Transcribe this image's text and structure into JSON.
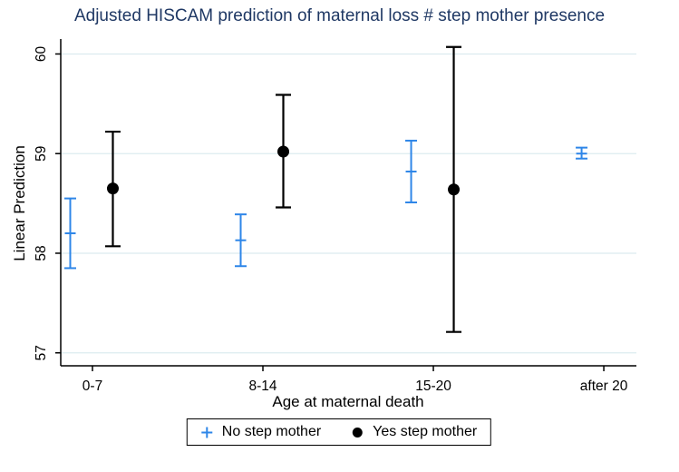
{
  "chart_data": {
    "type": "scatter",
    "title": "Adjusted HISCAM prediction of maternal loss # step mother presence",
    "xlabel": "Age at maternal death",
    "ylabel": "Linear Prediction",
    "categories": [
      "0-7",
      "8-14",
      "15-20",
      "after 20"
    ],
    "yticks": [
      57,
      58,
      59,
      60
    ],
    "ylim": [
      56.87,
      60.15
    ],
    "grid": true,
    "legend_position": "bottom-outside",
    "series": [
      {
        "name": "No step mother",
        "marker": "plus",
        "color": "#2e86e8",
        "values": [
          58.2,
          58.13,
          58.82,
          59.0
        ],
        "ci_low": [
          57.85,
          57.87,
          58.51,
          58.95
        ],
        "ci_high": [
          58.55,
          58.39,
          59.13,
          59.06
        ]
      },
      {
        "name": "Yes step mother",
        "marker": "circle",
        "color": "#000000",
        "values": [
          58.65,
          59.02,
          58.64,
          null
        ],
        "ci_low": [
          58.07,
          58.46,
          57.21,
          null
        ],
        "ci_high": [
          59.22,
          59.59,
          60.07,
          null
        ]
      }
    ]
  },
  "colors": {
    "title": "#1f3864",
    "grid": "#dcebef",
    "axis": "#000000",
    "background": "#ffffff"
  }
}
